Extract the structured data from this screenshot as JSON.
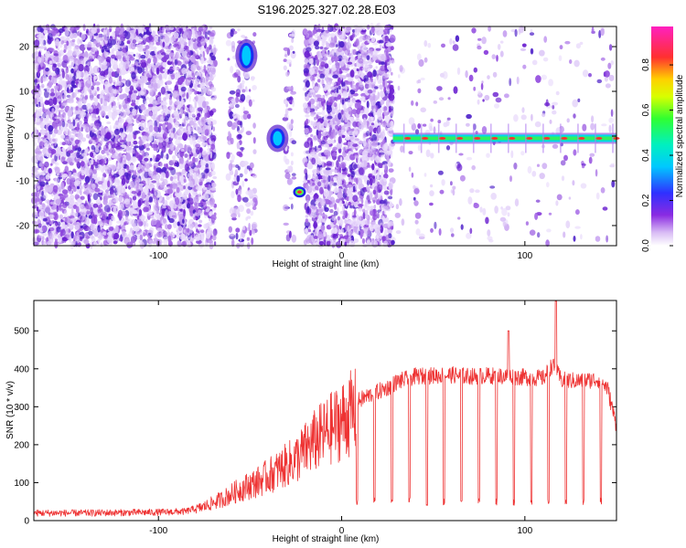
{
  "title": "S196.2025.327.02.28.E03",
  "chart_data": [
    {
      "type": "heatmap",
      "xlabel": "Height of straight line (km)",
      "ylabel": "Frequency (Hz)",
      "xlim": [
        -168,
        150
      ],
      "ylim": [
        -24.5,
        24.5
      ],
      "xticks": [
        -100,
        0,
        100
      ],
      "yticks": [
        -20,
        -10,
        0,
        10,
        20
      ],
      "colorbar": {
        "label": "Normalized spectral amplitude",
        "range": [
          0,
          0.97
        ],
        "ticks": [
          0.0,
          0.2,
          0.4,
          0.6,
          0.8
        ],
        "tick_labels": [
          "0.0",
          "0.2",
          "0.4",
          "0.6",
          "0.8"
        ],
        "colormap": "rainbow (white-violet-blue-cyan-green-yellow-red-magenta)"
      },
      "features": [
        {
          "name": "broadband noise",
          "x_range": [
            -168,
            -69
          ],
          "freq_range": [
            -24.5,
            24.5
          ],
          "amplitude": 0.05
        },
        {
          "name": "noise",
          "x_range": [
            -20,
            28
          ],
          "freq_range": [
            -24.5,
            24.5
          ],
          "amplitude": 0.05
        },
        {
          "name": "narrowband signal",
          "x_range": [
            28,
            150
          ],
          "freq": -0.5,
          "amplitude_range": [
            0.4,
            0.9
          ]
        },
        {
          "name": "blob",
          "x": -52,
          "freq": 18,
          "amplitude": 0.3
        },
        {
          "name": "blob",
          "x": -35,
          "freq": -0.5,
          "amplitude": 0.35
        },
        {
          "name": "blob",
          "x": -23,
          "freq": -12.5,
          "amplitude": 0.8
        }
      ]
    },
    {
      "type": "line",
      "xlabel": "Height of straight line (km)",
      "ylabel": "SNR (10 * v/v)",
      "xlim": [
        -168,
        150
      ],
      "ylim": [
        0,
        580
      ],
      "xticks": [
        -100,
        0,
        100
      ],
      "yticks": [
        0,
        100,
        200,
        300,
        400,
        500
      ],
      "color": "#ee3333",
      "x": [
        -168,
        -140,
        -120,
        -100,
        -85,
        -75,
        -65,
        -55,
        -45,
        -35,
        -25,
        -15,
        -5,
        5,
        15,
        25,
        30,
        40,
        50,
        60,
        70,
        80,
        90,
        100,
        110,
        115,
        120,
        130,
        140,
        145,
        150
      ],
      "y": [
        20,
        20,
        21,
        22,
        24,
        40,
        62,
        90,
        112,
        142,
        175,
        225,
        265,
        305,
        330,
        350,
        365,
        380,
        382,
        384,
        380,
        382,
        380,
        378,
        375,
        410,
        370,
        368,
        372,
        350,
        250
      ],
      "notes": "Signal is modulated by periodic dips to ~40 every ~9.5 km for x >= 8 km; spikes to ~500 near x=91 and ~580 near x=117."
    }
  ]
}
